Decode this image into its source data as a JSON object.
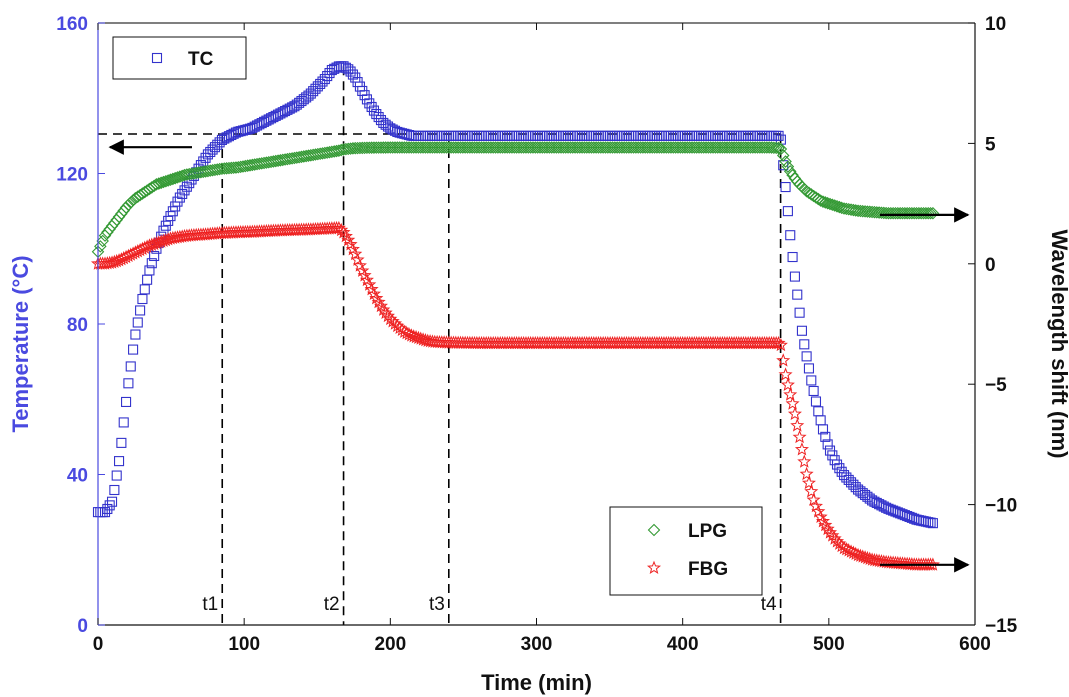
{
  "chart_data": {
    "type": "scatter",
    "xlabel": "Time (min)",
    "ylabel_left": "Temperature (°C)",
    "ylabel_right": "Wavelength shift (nm)",
    "xlim": [
      0,
      600
    ],
    "ylim_left": [
      0,
      160
    ],
    "ylim_right": [
      -15,
      10
    ],
    "x_ticks": [
      "0",
      "100",
      "200",
      "300",
      "400",
      "500",
      "600"
    ],
    "y_left_ticks": [
      "0",
      "40",
      "80",
      "120",
      "160"
    ],
    "y_right_ticks": [
      "−15",
      "−10",
      "−5",
      "0",
      "5",
      "10"
    ],
    "grid": false,
    "legends": [
      {
        "position": "top-left",
        "entries": [
          "TC"
        ]
      },
      {
        "position": "bottom-right",
        "entries": [
          "LPG",
          "FBG"
        ]
      }
    ],
    "time_markers": [
      {
        "label": "t1",
        "x": 85
      },
      {
        "label": "t2",
        "x": 168
      },
      {
        "label": "t3",
        "x": 240
      },
      {
        "label": "t4",
        "x": 467
      }
    ],
    "reference_level": {
      "axis": "left",
      "y": 130.5,
      "x_range": [
        0,
        467
      ]
    },
    "axis_arrows": [
      {
        "direction": "left",
        "at_y_left": 127
      },
      {
        "direction": "right",
        "at_y_left": 109
      },
      {
        "direction": "right",
        "at_y_left": 16
      }
    ],
    "series": [
      {
        "name": "TC",
        "axis": "left",
        "color": "#3333cc",
        "marker": "square",
        "x": [
          0,
          5,
          10,
          15,
          20,
          25,
          30,
          35,
          40,
          45,
          50,
          55,
          60,
          65,
          70,
          75,
          80,
          85,
          95,
          105,
          115,
          125,
          135,
          145,
          150,
          155,
          160,
          165,
          168,
          172,
          176,
          180,
          185,
          190,
          195,
          200,
          205,
          210,
          215,
          220,
          225,
          230,
          240,
          260,
          280,
          300,
          320,
          340,
          360,
          380,
          400,
          420,
          440,
          460,
          467,
          468,
          470,
          472,
          474,
          476,
          478,
          480,
          482,
          485,
          488,
          492,
          496,
          500,
          505,
          510,
          515,
          520,
          525,
          530,
          540,
          550,
          560,
          572
        ],
        "y": [
          30,
          30,
          33,
          45,
          62,
          76,
          86,
          94,
          100,
          105,
          109,
          113,
          116,
          119,
          122,
          125,
          127,
          129,
          131,
          132,
          134,
          136,
          138,
          141,
          143,
          145,
          147.5,
          148.5,
          148.5,
          147.5,
          145.5,
          142.5,
          139,
          136,
          133.5,
          132,
          131,
          130.5,
          130,
          130,
          130,
          130,
          130,
          130,
          130,
          130,
          130,
          130,
          130,
          130,
          130,
          130,
          130,
          130,
          130,
          125,
          118,
          110,
          102,
          95,
          89,
          83,
          77,
          71,
          65,
          58,
          52,
          47,
          43,
          40,
          38,
          36,
          34.5,
          33,
          31,
          29.5,
          28,
          27
        ]
      },
      {
        "name": "LPG",
        "axis": "right",
        "color": "#339933",
        "marker": "diamond",
        "x": [
          0,
          5,
          10,
          15,
          20,
          25,
          30,
          35,
          40,
          45,
          50,
          55,
          60,
          65,
          70,
          75,
          80,
          85,
          95,
          105,
          115,
          125,
          135,
          145,
          155,
          165,
          168,
          175,
          185,
          200,
          220,
          240,
          260,
          280,
          300,
          320,
          340,
          360,
          380,
          400,
          420,
          440,
          460,
          467,
          470,
          473,
          476,
          480,
          485,
          490,
          495,
          500,
          505,
          510,
          520,
          530,
          540,
          550,
          560,
          572
        ],
        "y": [
          0.5,
          1.2,
          1.6,
          2.0,
          2.4,
          2.7,
          2.9,
          3.1,
          3.3,
          3.4,
          3.5,
          3.6,
          3.7,
          3.75,
          3.8,
          3.85,
          3.9,
          3.95,
          4.0,
          4.1,
          4.2,
          4.3,
          4.4,
          4.5,
          4.6,
          4.7,
          4.75,
          4.8,
          4.82,
          4.83,
          4.83,
          4.83,
          4.83,
          4.83,
          4.83,
          4.83,
          4.83,
          4.83,
          4.83,
          4.83,
          4.83,
          4.83,
          4.83,
          4.8,
          4.3,
          3.9,
          3.6,
          3.3,
          3.0,
          2.8,
          2.6,
          2.5,
          2.4,
          2.3,
          2.2,
          2.15,
          2.1,
          2.1,
          2.1,
          2.1
        ]
      },
      {
        "name": "FBG",
        "axis": "right",
        "color": "#ee2222",
        "marker": "star",
        "x": [
          0,
          5,
          10,
          15,
          20,
          25,
          30,
          35,
          40,
          45,
          50,
          55,
          60,
          65,
          70,
          75,
          80,
          85,
          95,
          105,
          115,
          125,
          135,
          145,
          155,
          165,
          168,
          172,
          176,
          180,
          185,
          190,
          195,
          200,
          205,
          210,
          215,
          220,
          225,
          230,
          240,
          260,
          280,
          300,
          320,
          340,
          360,
          380,
          400,
          420,
          440,
          460,
          467,
          470,
          473,
          476,
          480,
          485,
          490,
          495,
          500,
          505,
          510,
          520,
          530,
          540,
          550,
          560,
          572
        ],
        "y": [
          0,
          0,
          0.05,
          0.15,
          0.3,
          0.45,
          0.6,
          0.75,
          0.85,
          0.95,
          1.05,
          1.1,
          1.15,
          1.18,
          1.2,
          1.22,
          1.25,
          1.27,
          1.3,
          1.32,
          1.35,
          1.38,
          1.4,
          1.42,
          1.45,
          1.48,
          1.3,
          0.9,
          0.4,
          -0.2,
          -0.8,
          -1.4,
          -1.9,
          -2.3,
          -2.6,
          -2.85,
          -3.0,
          -3.1,
          -3.2,
          -3.25,
          -3.28,
          -3.3,
          -3.3,
          -3.3,
          -3.3,
          -3.3,
          -3.3,
          -3.3,
          -3.3,
          -3.3,
          -3.3,
          -3.3,
          -3.3,
          -4.5,
          -5.3,
          -6.0,
          -7.2,
          -8.8,
          -9.9,
          -10.6,
          -11.1,
          -11.5,
          -11.8,
          -12.1,
          -12.3,
          -12.4,
          -12.45,
          -12.5,
          -12.5
        ]
      }
    ]
  }
}
